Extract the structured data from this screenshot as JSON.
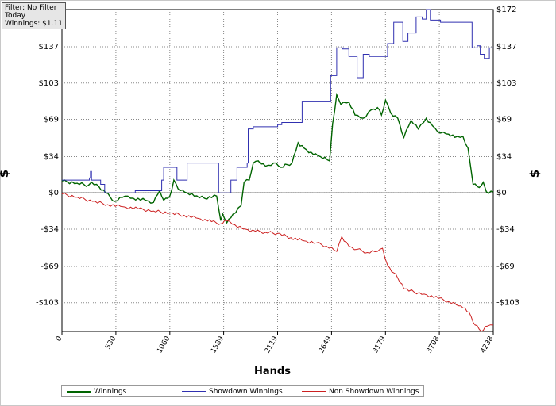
{
  "info": {
    "filter": "Filter: No Filter",
    "period": "Today",
    "winnings": "Winnings: $1.11"
  },
  "chart_data": {
    "type": "line",
    "xlabel": "Hands",
    "ylabel": "$",
    "xlim": [
      0,
      4238
    ],
    "ylim": [
      -130,
      172
    ],
    "x_ticks": [
      0,
      530,
      1060,
      1589,
      2119,
      2649,
      3179,
      3708,
      4238
    ],
    "y_ticks": [
      {
        "value": 172,
        "label": "$172"
      },
      {
        "value": 137,
        "label": "$137"
      },
      {
        "value": 103,
        "label": "$103"
      },
      {
        "value": 69,
        "label": "$69"
      },
      {
        "value": 34,
        "label": "$34"
      },
      {
        "value": 0,
        "label": "$0"
      },
      {
        "value": -34,
        "label": "-$34"
      },
      {
        "value": -69,
        "label": "-$69"
      },
      {
        "value": -103,
        "label": "-$103"
      }
    ],
    "grid": true,
    "legend_position": "bottom",
    "series": [
      {
        "name": "Winnings",
        "color": "#006400",
        "points": [
          [
            0,
            11
          ],
          [
            150,
            9
          ],
          [
            260,
            7
          ],
          [
            290,
            10
          ],
          [
            340,
            8
          ],
          [
            430,
            0
          ],
          [
            520,
            -8
          ],
          [
            620,
            -3
          ],
          [
            700,
            -5
          ],
          [
            820,
            -7
          ],
          [
            900,
            -9
          ],
          [
            960,
            2
          ],
          [
            1000,
            -7
          ],
          [
            1060,
            -3
          ],
          [
            1100,
            12
          ],
          [
            1160,
            2
          ],
          [
            1230,
            0
          ],
          [
            1300,
            -3
          ],
          [
            1400,
            -5
          ],
          [
            1520,
            -3
          ],
          [
            1560,
            -26
          ],
          [
            1580,
            -20
          ],
          [
            1620,
            -28
          ],
          [
            1680,
            -20
          ],
          [
            1760,
            -12
          ],
          [
            1790,
            10
          ],
          [
            1840,
            12
          ],
          [
            1880,
            28
          ],
          [
            1930,
            30
          ],
          [
            2000,
            25
          ],
          [
            2080,
            28
          ],
          [
            2150,
            24
          ],
          [
            2260,
            28
          ],
          [
            2320,
            47
          ],
          [
            2380,
            42
          ],
          [
            2470,
            36
          ],
          [
            2540,
            34
          ],
          [
            2630,
            30
          ],
          [
            2660,
            65
          ],
          [
            2700,
            92
          ],
          [
            2740,
            83
          ],
          [
            2820,
            85
          ],
          [
            2880,
            73
          ],
          [
            2960,
            70
          ],
          [
            3040,
            78
          ],
          [
            3100,
            80
          ],
          [
            3140,
            73
          ],
          [
            3180,
            87
          ],
          [
            3230,
            75
          ],
          [
            3300,
            70
          ],
          [
            3360,
            52
          ],
          [
            3430,
            68
          ],
          [
            3500,
            60
          ],
          [
            3580,
            70
          ],
          [
            3640,
            63
          ],
          [
            3720,
            56
          ],
          [
            3800,
            55
          ],
          [
            3860,
            52
          ],
          [
            3940,
            53
          ],
          [
            3990,
            42
          ],
          [
            4040,
            8
          ],
          [
            4100,
            5
          ],
          [
            4140,
            10
          ],
          [
            4170,
            1
          ],
          [
            4238,
            1
          ]
        ]
      },
      {
        "name": "Showdown Winnings",
        "color": "#3030b0",
        "points": [
          [
            0,
            12
          ],
          [
            190,
            12
          ],
          [
            270,
            14
          ],
          [
            280,
            20
          ],
          [
            290,
            12
          ],
          [
            380,
            8
          ],
          [
            420,
            0
          ],
          [
            640,
            0
          ],
          [
            720,
            2
          ],
          [
            880,
            2
          ],
          [
            980,
            12
          ],
          [
            1000,
            24
          ],
          [
            1120,
            24
          ],
          [
            1130,
            12
          ],
          [
            1220,
            12
          ],
          [
            1230,
            28
          ],
          [
            1520,
            28
          ],
          [
            1540,
            0
          ],
          [
            1640,
            0
          ],
          [
            1660,
            12
          ],
          [
            1720,
            24
          ],
          [
            1820,
            28
          ],
          [
            1830,
            60
          ],
          [
            1880,
            62
          ],
          [
            2120,
            64
          ],
          [
            2160,
            66
          ],
          [
            2330,
            66
          ],
          [
            2360,
            86
          ],
          [
            2600,
            86
          ],
          [
            2640,
            110
          ],
          [
            2700,
            136
          ],
          [
            2760,
            135
          ],
          [
            2820,
            128
          ],
          [
            2900,
            108
          ],
          [
            2960,
            130
          ],
          [
            3020,
            128
          ],
          [
            3160,
            128
          ],
          [
            3200,
            140
          ],
          [
            3260,
            160
          ],
          [
            3320,
            160
          ],
          [
            3350,
            142
          ],
          [
            3400,
            150
          ],
          [
            3480,
            165
          ],
          [
            3540,
            163
          ],
          [
            3580,
            172
          ],
          [
            3620,
            162
          ],
          [
            3720,
            160
          ],
          [
            3780,
            160
          ],
          [
            3900,
            160
          ],
          [
            4020,
            160
          ],
          [
            4030,
            136
          ],
          [
            4080,
            138
          ],
          [
            4110,
            130
          ],
          [
            4150,
            126
          ],
          [
            4200,
            136
          ],
          [
            4238,
            136
          ]
        ]
      },
      {
        "name": "Non Showdown Winnings",
        "color": "#cc2020",
        "points": [
          [
            0,
            -1
          ],
          [
            150,
            -4
          ],
          [
            300,
            -8
          ],
          [
            450,
            -11
          ],
          [
            600,
            -13
          ],
          [
            750,
            -15
          ],
          [
            900,
            -17
          ],
          [
            1060,
            -19
          ],
          [
            1200,
            -21
          ],
          [
            1340,
            -24
          ],
          [
            1470,
            -27
          ],
          [
            1560,
            -29
          ],
          [
            1620,
            -26
          ],
          [
            1700,
            -30
          ],
          [
            1800,
            -34
          ],
          [
            1900,
            -36
          ],
          [
            2000,
            -37
          ],
          [
            2119,
            -38
          ],
          [
            2250,
            -42
          ],
          [
            2380,
            -45
          ],
          [
            2500,
            -47
          ],
          [
            2600,
            -50
          ],
          [
            2700,
            -55
          ],
          [
            2750,
            -41
          ],
          [
            2820,
            -50
          ],
          [
            2900,
            -53
          ],
          [
            3000,
            -56
          ],
          [
            3100,
            -55
          ],
          [
            3150,
            -52
          ],
          [
            3200,
            -68
          ],
          [
            3260,
            -75
          ],
          [
            3300,
            -80
          ],
          [
            3360,
            -90
          ],
          [
            3460,
            -93
          ],
          [
            3560,
            -95
          ],
          [
            3700,
            -99
          ],
          [
            3800,
            -102
          ],
          [
            3900,
            -106
          ],
          [
            3960,
            -108
          ],
          [
            4000,
            -112
          ],
          [
            4060,
            -124
          ],
          [
            4120,
            -130
          ],
          [
            4180,
            -125
          ],
          [
            4238,
            -124
          ]
        ]
      }
    ]
  }
}
